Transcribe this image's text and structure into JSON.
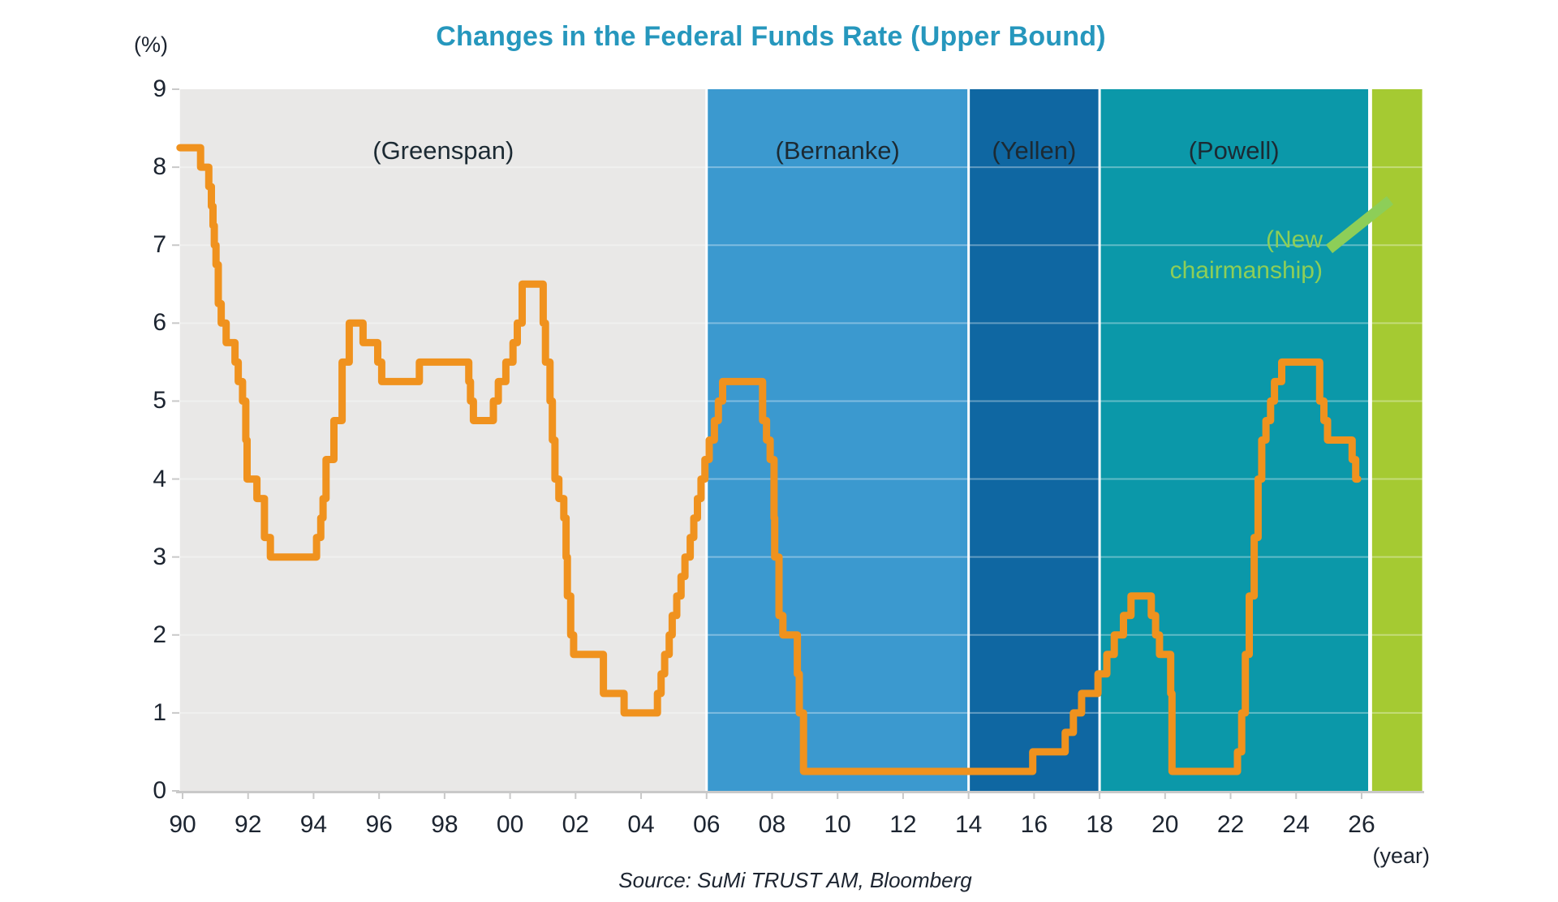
{
  "title": {
    "text": "Changes in the Federal Funds Rate (Upper Bound)",
    "color": "#2697bd"
  },
  "axes": {
    "y": {
      "unit_label": "(%)",
      "ticks": [
        {
          "value": 0,
          "label": "0"
        },
        {
          "value": 1,
          "label": "1"
        },
        {
          "value": 2,
          "label": "2"
        },
        {
          "value": 3,
          "label": "3"
        },
        {
          "value": 4,
          "label": "4"
        },
        {
          "value": 5,
          "label": "5"
        },
        {
          "value": 6,
          "label": "6"
        },
        {
          "value": 7,
          "label": "7"
        },
        {
          "value": 8,
          "label": "8"
        },
        {
          "value": 9,
          "label": "9"
        }
      ]
    },
    "x": {
      "unit_label": "(year)",
      "ticks": [
        {
          "year": 1990,
          "label": "90"
        },
        {
          "year": 1992,
          "label": "92"
        },
        {
          "year": 1994,
          "label": "94"
        },
        {
          "year": 1996,
          "label": "96"
        },
        {
          "year": 1998,
          "label": "98"
        },
        {
          "year": 2000,
          "label": "00"
        },
        {
          "year": 2002,
          "label": "02"
        },
        {
          "year": 2004,
          "label": "04"
        },
        {
          "year": 2006,
          "label": "06"
        },
        {
          "year": 2008,
          "label": "08"
        },
        {
          "year": 2010,
          "label": "10"
        },
        {
          "year": 2012,
          "label": "12"
        },
        {
          "year": 2014,
          "label": "14"
        },
        {
          "year": 2016,
          "label": "16"
        },
        {
          "year": 2018,
          "label": "18"
        },
        {
          "year": 2020,
          "label": "20"
        },
        {
          "year": 2022,
          "label": "22"
        },
        {
          "year": 2024,
          "label": "24"
        },
        {
          "year": 2026,
          "label": "26"
        }
      ]
    }
  },
  "annotation": {
    "lines": [
      "(New",
      "chairmanship)"
    ],
    "color": "#8dce58"
  },
  "source_note": "Source: SuMi TRUST AM, Bloomberg",
  "chart_data": {
    "type": "line",
    "step": true,
    "title": "Changes in the Federal Funds Rate (Upper Bound)",
    "xlabel": "(year)",
    "ylabel": "(%)",
    "xlim": [
      1989.92,
      2027.85
    ],
    "ylim": [
      0,
      9
    ],
    "grid": "white horizontal lines at integer values over era bands",
    "legend_position": "none",
    "line_color": "#f0921e",
    "baseline_color": "#c9c9c9",
    "regions": [
      {
        "label": "(Greenspan)",
        "start": 1989.92,
        "end": 2006.0,
        "color": "#e9e8e7"
      },
      {
        "label": "(Bernanke)",
        "start": 2006.0,
        "end": 2014.0,
        "color": "#3b99cf"
      },
      {
        "label": "(Yellen)",
        "start": 2014.0,
        "end": 2018.0,
        "color": "#0f67a2"
      },
      {
        "label": "(Powell)",
        "start": 2018.0,
        "end": 2026.2,
        "color": "#0b98a9"
      },
      {
        "label": "",
        "start": 2026.32,
        "end": 2027.85,
        "color": "#a5ca32",
        "annotation": "(New chairmanship)"
      }
    ],
    "series": [
      {
        "name": "Federal funds rate upper bound (%)",
        "points": [
          [
            1989.92,
            8.25
          ],
          [
            1990.55,
            8.0
          ],
          [
            1990.8,
            7.75
          ],
          [
            1990.88,
            7.5
          ],
          [
            1990.93,
            7.25
          ],
          [
            1990.97,
            7.0
          ],
          [
            1991.02,
            6.75
          ],
          [
            1991.09,
            6.25
          ],
          [
            1991.18,
            6.0
          ],
          [
            1991.33,
            5.75
          ],
          [
            1991.6,
            5.5
          ],
          [
            1991.7,
            5.25
          ],
          [
            1991.83,
            5.0
          ],
          [
            1991.93,
            4.5
          ],
          [
            1991.97,
            4.0
          ],
          [
            1992.27,
            3.75
          ],
          [
            1992.5,
            3.25
          ],
          [
            1992.68,
            3.0
          ],
          [
            1994.09,
            3.25
          ],
          [
            1994.22,
            3.5
          ],
          [
            1994.29,
            3.75
          ],
          [
            1994.38,
            4.25
          ],
          [
            1994.62,
            4.75
          ],
          [
            1994.87,
            5.5
          ],
          [
            1995.09,
            6.0
          ],
          [
            1995.51,
            5.75
          ],
          [
            1995.96,
            5.5
          ],
          [
            1996.08,
            5.25
          ],
          [
            1997.23,
            5.5
          ],
          [
            1998.74,
            5.25
          ],
          [
            1998.79,
            5.0
          ],
          [
            1998.88,
            4.75
          ],
          [
            1999.49,
            5.0
          ],
          [
            1999.64,
            5.25
          ],
          [
            1999.87,
            5.5
          ],
          [
            2000.09,
            5.75
          ],
          [
            2000.22,
            6.0
          ],
          [
            2000.37,
            6.5
          ],
          [
            2001.01,
            6.0
          ],
          [
            2001.08,
            5.5
          ],
          [
            2001.22,
            5.0
          ],
          [
            2001.29,
            4.5
          ],
          [
            2001.37,
            4.0
          ],
          [
            2001.49,
            3.75
          ],
          [
            2001.64,
            3.5
          ],
          [
            2001.71,
            3.0
          ],
          [
            2001.75,
            2.5
          ],
          [
            2001.85,
            2.0
          ],
          [
            2001.94,
            1.75
          ],
          [
            2002.85,
            1.25
          ],
          [
            2003.48,
            1.0
          ],
          [
            2004.5,
            1.25
          ],
          [
            2004.61,
            1.5
          ],
          [
            2004.72,
            1.75
          ],
          [
            2004.86,
            2.0
          ],
          [
            2004.95,
            2.25
          ],
          [
            2005.09,
            2.5
          ],
          [
            2005.22,
            2.75
          ],
          [
            2005.34,
            3.0
          ],
          [
            2005.5,
            3.25
          ],
          [
            2005.61,
            3.5
          ],
          [
            2005.72,
            3.75
          ],
          [
            2005.83,
            4.0
          ],
          [
            2005.95,
            4.25
          ],
          [
            2006.08,
            4.5
          ],
          [
            2006.24,
            4.75
          ],
          [
            2006.36,
            5.0
          ],
          [
            2006.49,
            5.25
          ],
          [
            2007.71,
            4.75
          ],
          [
            2007.83,
            4.5
          ],
          [
            2007.94,
            4.25
          ],
          [
            2008.06,
            3.5
          ],
          [
            2008.08,
            3.0
          ],
          [
            2008.21,
            2.25
          ],
          [
            2008.33,
            2.0
          ],
          [
            2008.77,
            1.5
          ],
          [
            2008.83,
            1.0
          ],
          [
            2008.96,
            0.25
          ],
          [
            2015.96,
            0.5
          ],
          [
            2016.95,
            0.75
          ],
          [
            2017.2,
            1.0
          ],
          [
            2017.45,
            1.25
          ],
          [
            2017.95,
            1.5
          ],
          [
            2018.22,
            1.75
          ],
          [
            2018.45,
            2.0
          ],
          [
            2018.73,
            2.25
          ],
          [
            2018.96,
            2.5
          ],
          [
            2019.58,
            2.25
          ],
          [
            2019.71,
            2.0
          ],
          [
            2019.83,
            1.75
          ],
          [
            2020.17,
            1.25
          ],
          [
            2020.21,
            0.25
          ],
          [
            2022.21,
            0.5
          ],
          [
            2022.34,
            1.0
          ],
          [
            2022.45,
            1.75
          ],
          [
            2022.57,
            2.5
          ],
          [
            2022.72,
            3.25
          ],
          [
            2022.84,
            4.0
          ],
          [
            2022.95,
            4.5
          ],
          [
            2023.08,
            4.75
          ],
          [
            2023.22,
            5.0
          ],
          [
            2023.34,
            5.25
          ],
          [
            2023.56,
            5.5
          ],
          [
            2024.72,
            5.0
          ],
          [
            2024.85,
            4.75
          ],
          [
            2024.96,
            4.5
          ],
          [
            2025.71,
            4.25
          ],
          [
            2025.82,
            4.0
          ],
          [
            2025.88,
            4.0
          ]
        ]
      }
    ]
  }
}
